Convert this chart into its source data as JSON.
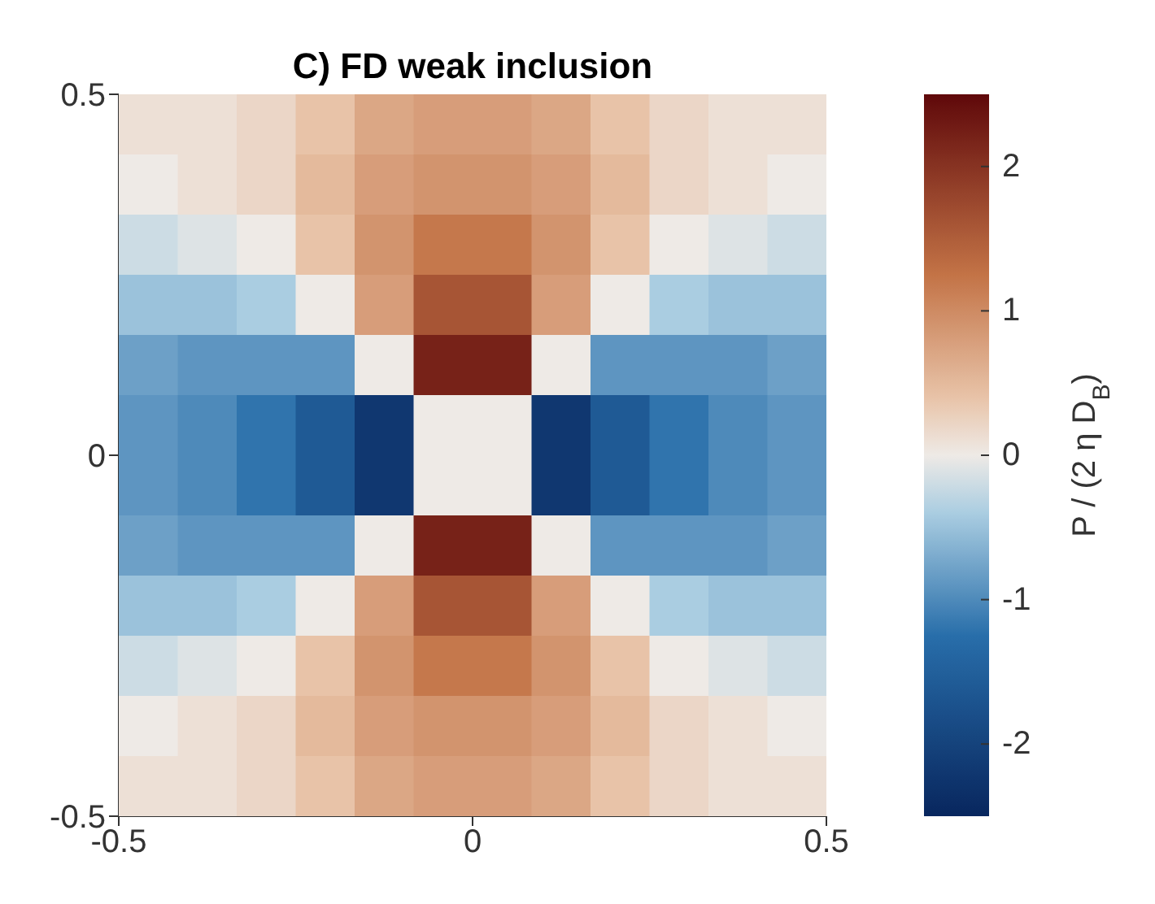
{
  "chart_data": {
    "type": "heatmap",
    "title": "C) FD weak inclusion",
    "clabel": "P / (2 η D$_{B}$)",
    "xlim": [
      -0.5,
      0.5
    ],
    "xticks": [
      -0.5,
      0,
      0.5
    ],
    "ylim": [
      -0.5,
      0.5
    ],
    "yticks": [
      -0.5,
      0,
      0.5
    ],
    "clim": [
      -2.5,
      2.5
    ],
    "cticks": [
      -2,
      -1,
      0,
      1,
      2
    ],
    "cells": [
      [
        0.1,
        0.1,
        0.2,
        0.4,
        0.7,
        0.8,
        0.8,
        0.7,
        0.4,
        0.2,
        0.1,
        0.1
      ],
      [
        0,
        0.1,
        0.2,
        0.5,
        0.8,
        0.9,
        0.9,
        0.8,
        0.5,
        0.2,
        0.1,
        0
      ],
      [
        -0.2,
        -0.1,
        0,
        0.4,
        0.9,
        1.2,
        1.2,
        0.9,
        0.4,
        0,
        -0.1,
        -0.2
      ],
      [
        -0.5,
        -0.5,
        -0.4,
        0,
        0.8,
        1.6,
        1.6,
        0.8,
        0,
        -0.4,
        -0.5,
        -0.5
      ],
      [
        -0.8,
        -0.9,
        -0.9,
        -0.9,
        0,
        2.2,
        2.2,
        0,
        -0.9,
        -0.9,
        -0.9,
        -0.8
      ],
      [
        -0.9,
        -1.0,
        -1.2,
        -1.6,
        -2.2,
        0,
        0,
        -2.2,
        -1.6,
        -1.2,
        -1.0,
        -0.9
      ],
      [
        -0.9,
        -1.0,
        -1.2,
        -1.6,
        -2.2,
        0,
        0,
        -2.2,
        -1.6,
        -1.2,
        -1.0,
        -0.9
      ],
      [
        -0.8,
        -0.9,
        -0.9,
        -0.9,
        0,
        2.2,
        2.2,
        0,
        -0.9,
        -0.9,
        -0.9,
        -0.8
      ],
      [
        -0.5,
        -0.5,
        -0.4,
        0,
        0.8,
        1.6,
        1.6,
        0.8,
        0,
        -0.4,
        -0.5,
        -0.5
      ],
      [
        -0.2,
        -0.1,
        0,
        0.4,
        0.9,
        1.2,
        1.2,
        0.9,
        0.4,
        0,
        -0.1,
        -0.2
      ],
      [
        0,
        0.1,
        0.2,
        0.5,
        0.8,
        0.9,
        0.9,
        0.8,
        0.5,
        0.2,
        0.1,
        0
      ],
      [
        0.1,
        0.1,
        0.2,
        0.4,
        0.7,
        0.8,
        0.8,
        0.7,
        0.4,
        0.2,
        0.1,
        0.1
      ]
    ]
  }
}
